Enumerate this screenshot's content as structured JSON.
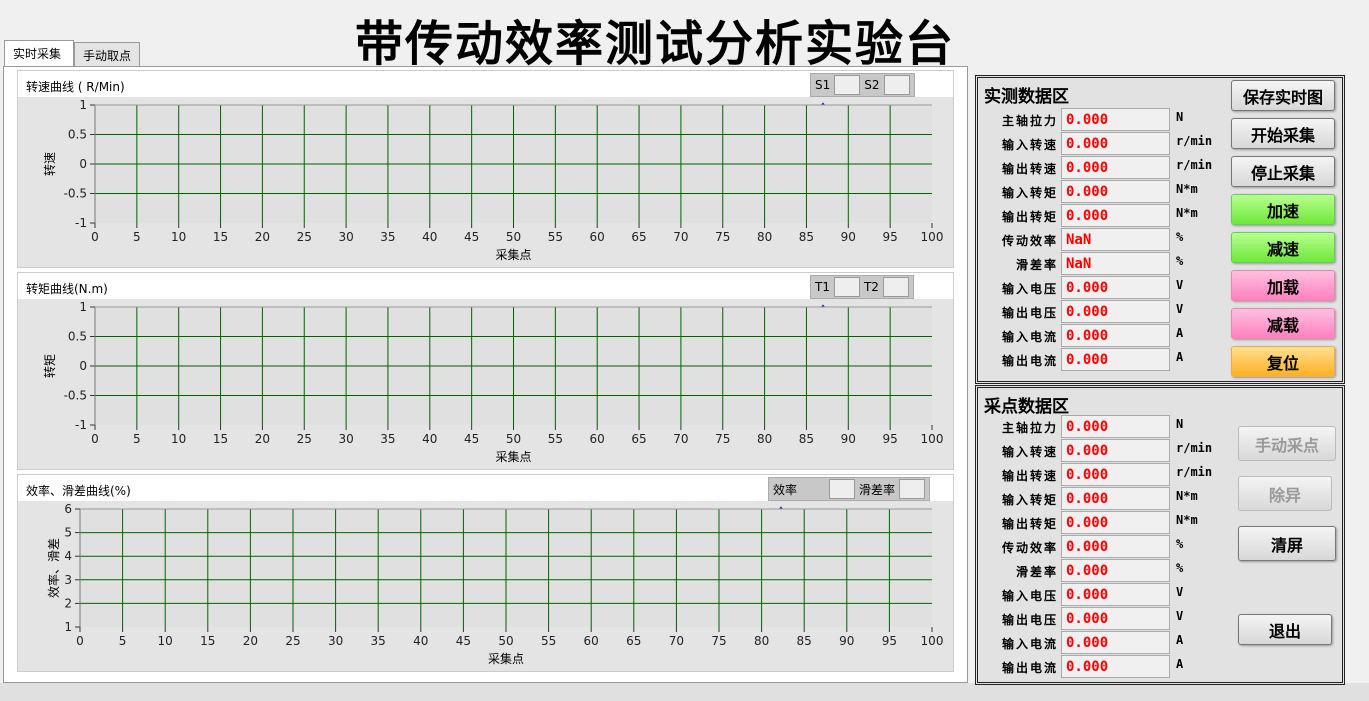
{
  "title": "带传动效率测试分析实验台",
  "tabs": [
    {
      "label": "实时采集",
      "selected": true
    },
    {
      "label": "手动取点",
      "selected": false
    }
  ],
  "colors": {
    "grid": "#006400",
    "plot_bg": "#e0e0e0",
    "series1": "#ff0000",
    "series2": "#0033dd",
    "value_text": "#ff0000"
  },
  "charts": [
    {
      "title": "转速曲线 ( R/Min)",
      "ylabel": "转速",
      "xlabel": "采集点",
      "xlim": [
        0,
        100
      ],
      "ylim": [
        -1,
        1
      ],
      "xticks": [
        0,
        5,
        10,
        15,
        20,
        25,
        30,
        35,
        40,
        45,
        50,
        55,
        60,
        65,
        70,
        75,
        80,
        85,
        90,
        95,
        100
      ],
      "yticks": [
        -1,
        -0.5,
        0,
        0.5,
        1
      ],
      "legend": [
        "S1",
        "S2"
      ],
      "grid": true
    },
    {
      "title": "转矩曲线(N.m)",
      "ylabel": "转矩",
      "xlabel": "采集点",
      "xlim": [
        0,
        100
      ],
      "ylim": [
        -1,
        1
      ],
      "xticks": [
        0,
        5,
        10,
        15,
        20,
        25,
        30,
        35,
        40,
        45,
        50,
        55,
        60,
        65,
        70,
        75,
        80,
        85,
        90,
        95,
        100
      ],
      "yticks": [
        -1,
        -0.5,
        0,
        0.5,
        1
      ],
      "legend": [
        "T1",
        "T2"
      ],
      "grid": true
    },
    {
      "title": "效率、滑差曲线(%)",
      "ylabel": "效率、滑差",
      "xlabel": "采集点",
      "xlim": [
        0,
        100
      ],
      "ylim": [
        1,
        6
      ],
      "xticks": [
        0,
        5,
        10,
        15,
        20,
        25,
        30,
        35,
        40,
        45,
        50,
        55,
        60,
        65,
        70,
        75,
        80,
        85,
        90,
        95,
        100
      ],
      "yticks": [
        1,
        2,
        3,
        4,
        5,
        6
      ],
      "legend": [
        "效率",
        "滑差率"
      ],
      "grid": true
    }
  ],
  "realtime": {
    "title": "实测数据区",
    "rows": [
      {
        "label": "主轴拉力",
        "value": "0.000",
        "unit": "N"
      },
      {
        "label": "输入转速",
        "value": "0.000",
        "unit": "r/min"
      },
      {
        "label": "输出转速",
        "value": "0.000",
        "unit": "r/min"
      },
      {
        "label": "输入转矩",
        "value": "0.000",
        "unit": "N*m"
      },
      {
        "label": "输出转矩",
        "value": "0.000",
        "unit": "N*m"
      },
      {
        "label": "传动效率",
        "value": "NaN",
        "unit": "%"
      },
      {
        "label": "滑差率",
        "value": "NaN",
        "unit": "%"
      },
      {
        "label": "输入电压",
        "value": "0.000",
        "unit": "V"
      },
      {
        "label": "输出电压",
        "value": "0.000",
        "unit": "V"
      },
      {
        "label": "输入电流",
        "value": "0.000",
        "unit": "A"
      },
      {
        "label": "输出电流",
        "value": "0.000",
        "unit": "A"
      }
    ],
    "buttons": {
      "save": "保存实时图",
      "start": "开始采集",
      "stop": "停止采集",
      "speed_up": "加速",
      "speed_down": "减速",
      "load_up": "加载",
      "load_down": "减载",
      "reset": "复位"
    }
  },
  "sample": {
    "title": "采点数据区",
    "rows": [
      {
        "label": "主轴拉力",
        "value": "0.000",
        "unit": "N"
      },
      {
        "label": "输入转速",
        "value": "0.000",
        "unit": "r/min"
      },
      {
        "label": "输出转速",
        "value": "0.000",
        "unit": "r/min"
      },
      {
        "label": "输入转矩",
        "value": "0.000",
        "unit": "N*m"
      },
      {
        "label": "输出转矩",
        "value": "0.000",
        "unit": "N*m"
      },
      {
        "label": "传动效率",
        "value": "0.000",
        "unit": "%"
      },
      {
        "label": "滑差率",
        "value": "0.000",
        "unit": "%"
      },
      {
        "label": "输入电压",
        "value": "0.000",
        "unit": "V"
      },
      {
        "label": "输出电压",
        "value": "0.000",
        "unit": "V"
      },
      {
        "label": "输入电流",
        "value": "0.000",
        "unit": "A"
      },
      {
        "label": "输出电流",
        "value": "0.000",
        "unit": "A"
      }
    ],
    "buttons": {
      "manual": "手动采点",
      "remove": "除异",
      "clear": "清屏",
      "exit": "退出"
    }
  }
}
